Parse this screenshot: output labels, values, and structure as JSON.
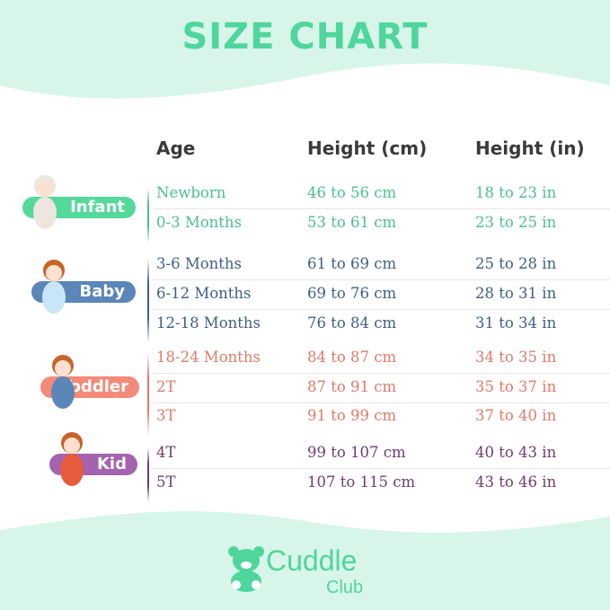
{
  "title": "SIZE CHART",
  "headers": {
    "age": "Age",
    "cm": "Height (cm)",
    "in": "Height (in)"
  },
  "colors": {
    "infant": "#4cc08a",
    "baby": "#3f5f86",
    "toddler": "#e07a6a",
    "kid": "#6e3c72",
    "title": "#4fd69c",
    "background": "#d8f5ea"
  },
  "groups": [
    {
      "label": "Infant",
      "rows": [
        {
          "age": "Newborn",
          "cm": "46 to 56 cm",
          "in": "18 to 23 in"
        },
        {
          "age": "0-3 Months",
          "cm": "53 to 61 cm",
          "in": "23 to 25 in"
        }
      ]
    },
    {
      "label": "Baby",
      "rows": [
        {
          "age": "3-6 Months",
          "cm": "61 to 69 cm",
          "in": "25 to 28 in"
        },
        {
          "age": "6-12 Months",
          "cm": "69 to 76 cm",
          "in": "28 to 31 in"
        },
        {
          "age": "12-18 Months",
          "cm": "76 to 84 cm",
          "in": "31 to 34 in"
        }
      ]
    },
    {
      "label": "Toddler",
      "rows": [
        {
          "age": "18-24 Months",
          "cm": "84 to 87 cm",
          "in": "34 to 35 in"
        },
        {
          "age": "2T",
          "cm": "87 to 91 cm",
          "in": "35 to 37 in"
        },
        {
          "age": "3T",
          "cm": "91 to 99 cm",
          "in": "37 to 40 in"
        }
      ]
    },
    {
      "label": "Kid",
      "rows": [
        {
          "age": "4T",
          "cm": "99 to 107 cm",
          "in": "40 to 43 in"
        },
        {
          "age": "5T",
          "cm": "107 to 115 cm",
          "in": "43 to 46 in"
        }
      ]
    }
  ],
  "brand": {
    "name": "Cuddle",
    "sub": "Club"
  }
}
